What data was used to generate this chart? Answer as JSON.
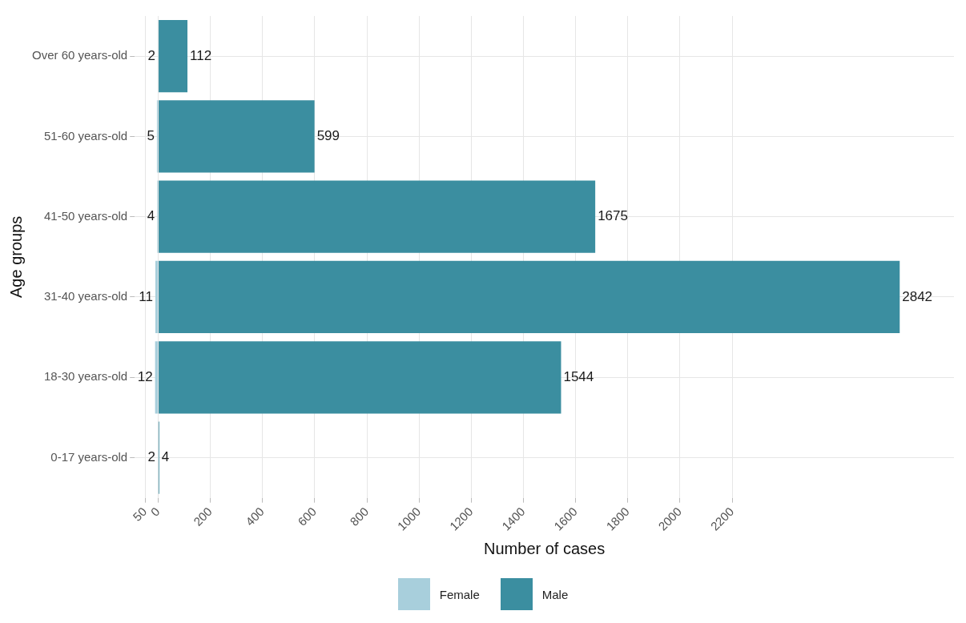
{
  "chart_data": {
    "type": "bar",
    "orientation": "horizontal",
    "xlabel": "Number of cases",
    "ylabel": "Age groups",
    "categories": [
      "Over 60 years-old",
      "51-60 years-old",
      "41-50 years-old",
      "31-40 years-old",
      "18-30 years-old",
      "0-17 years-old"
    ],
    "series": [
      {
        "name": "Female",
        "color": "#a8cfdc",
        "values": [
          2,
          5,
          4,
          11,
          12,
          2
        ],
        "base": [
          -2,
          -5,
          -4,
          -11,
          -12,
          -2
        ]
      },
      {
        "name": "Male",
        "color": "#3b8ea0",
        "values": [
          112,
          599,
          1675,
          2842,
          1544,
          4
        ]
      }
    ],
    "data_labels": true,
    "xlim": [
      -90,
      3050
    ],
    "xticks": [
      {
        "value": -50,
        "label": "50"
      },
      0,
      200,
      400,
      600,
      800,
      1000,
      1200,
      1400,
      1600,
      1800,
      2000,
      2200
    ],
    "grid": true,
    "legend": "bottom"
  }
}
